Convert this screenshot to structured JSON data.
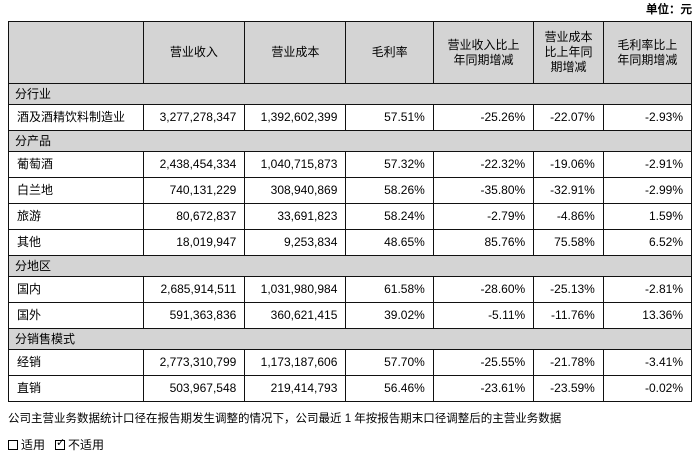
{
  "unit_label": "单位：元",
  "table": {
    "columns": [
      "",
      "营业收入",
      "营业成本",
      "毛利率",
      "营业收入比上\n年同期增减",
      "营业成本\n比上年同\n期增减",
      "毛利率比上\n年同期增减"
    ],
    "sections": [
      {
        "title": "分行业",
        "rows": [
          {
            "label": "酒及酒精饮料制造业",
            "values": [
              "3,277,278,347",
              "1,392,602,399",
              "57.51%",
              "-25.26%",
              "-22.07%",
              "-2.93%"
            ]
          }
        ]
      },
      {
        "title": "分产品",
        "rows": [
          {
            "label": "葡萄酒",
            "values": [
              "2,438,454,334",
              "1,040,715,873",
              "57.32%",
              "-22.32%",
              "-19.06%",
              "-2.91%"
            ]
          },
          {
            "label": "白兰地",
            "values": [
              "740,131,229",
              "308,940,869",
              "58.26%",
              "-35.80%",
              "-32.91%",
              "-2.99%"
            ]
          },
          {
            "label": "旅游",
            "values": [
              "80,672,837",
              "33,691,823",
              "58.24%",
              "-2.79%",
              "-4.86%",
              "1.59%"
            ]
          },
          {
            "label": "其他",
            "values": [
              "18,019,947",
              "9,253,834",
              "48.65%",
              "85.76%",
              "75.58%",
              "6.52%"
            ]
          }
        ]
      },
      {
        "title": "分地区",
        "rows": [
          {
            "label": "国内",
            "values": [
              "2,685,914,511",
              "1,031,980,984",
              "61.58%",
              "-28.60%",
              "-25.13%",
              "-2.81%"
            ]
          },
          {
            "label": "国外",
            "values": [
              "591,363,836",
              "360,621,415",
              "39.02%",
              "-5.11%",
              "-11.76%",
              "13.36%"
            ]
          }
        ]
      },
      {
        "title": "分销售模式",
        "rows": [
          {
            "label": "经销",
            "values": [
              "2,773,310,799",
              "1,173,187,606",
              "57.70%",
              "-25.55%",
              "-21.78%",
              "-3.41%"
            ]
          },
          {
            "label": "直销",
            "values": [
              "503,967,548",
              "219,414,793",
              "56.46%",
              "-23.61%",
              "-23.59%",
              "-0.02%"
            ]
          }
        ]
      }
    ]
  },
  "footer": {
    "note": "公司主营业务数据统计口径在报告期发生调整的情况下，公司最近 1 年按报告期末口径调整后的主营业务数据",
    "checkboxes": [
      {
        "label": "适用",
        "checked": false
      },
      {
        "label": "不适用",
        "checked": true
      }
    ]
  },
  "colors": {
    "header_fill": "#d4d4d4",
    "border": "#111111",
    "text": "#000000"
  }
}
